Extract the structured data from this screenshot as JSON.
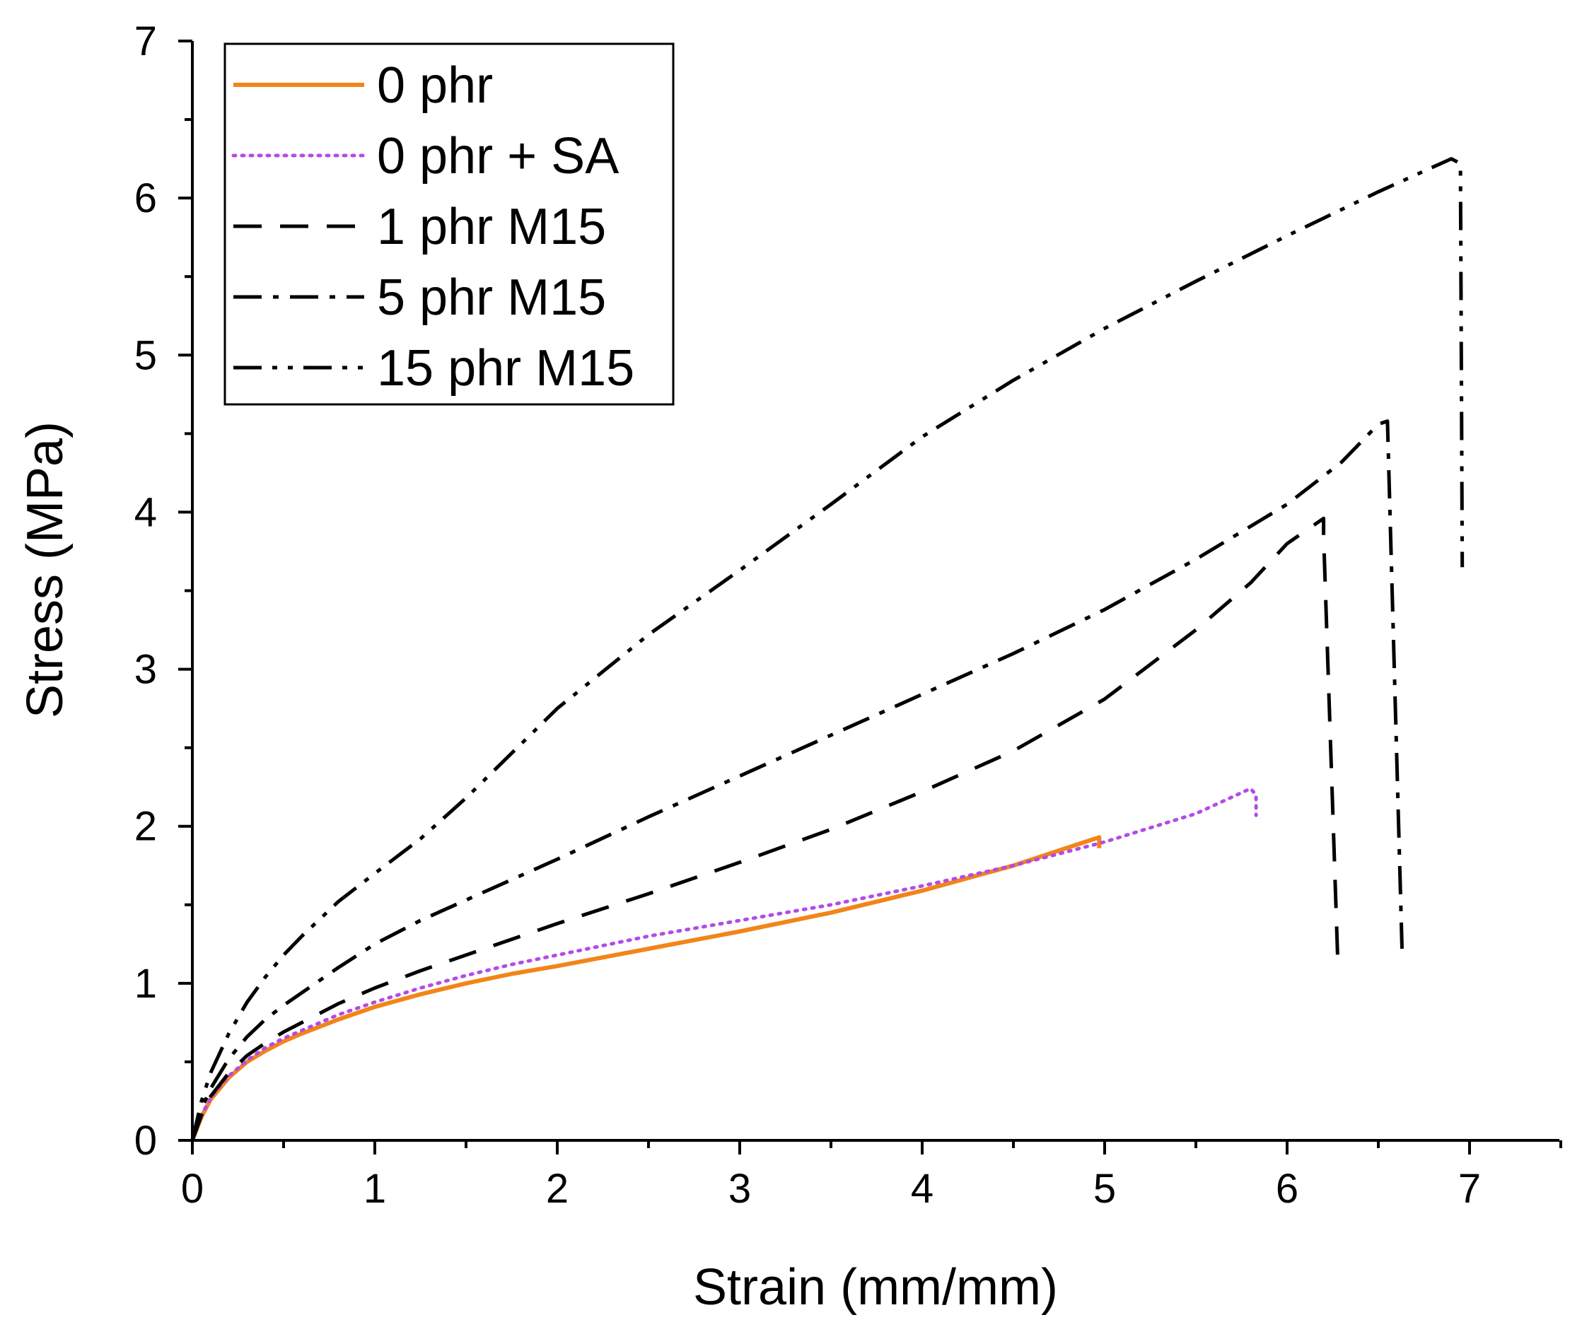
{
  "chart_data": {
    "type": "line",
    "title": "",
    "xlabel": "Strain (mm/mm)",
    "ylabel": "Stress (MPa)",
    "xlim": [
      0,
      7.5
    ],
    "ylim": [
      0,
      7
    ],
    "xticks": [
      0,
      1,
      2,
      3,
      4,
      5,
      6,
      7
    ],
    "yticks": [
      0,
      1,
      2,
      3,
      4,
      5,
      6,
      7
    ],
    "grid": false,
    "legend_position": "top-left",
    "series": [
      {
        "name": "0 phr",
        "color": "#f28518",
        "style": "solid",
        "x": [
          0,
          0.05,
          0.1,
          0.2,
          0.3,
          0.4,
          0.5,
          0.6,
          0.8,
          1.0,
          1.25,
          1.5,
          1.75,
          2.0,
          2.5,
          3.0,
          3.5,
          4.0,
          4.5,
          4.97,
          4.97
        ],
        "y": [
          0,
          0.15,
          0.26,
          0.4,
          0.5,
          0.57,
          0.63,
          0.68,
          0.77,
          0.85,
          0.93,
          1.0,
          1.06,
          1.11,
          1.22,
          1.33,
          1.45,
          1.59,
          1.75,
          1.93,
          1.86
        ]
      },
      {
        "name": "0 phr + SA",
        "color": "#b34be8",
        "style": "dotted",
        "x": [
          0,
          0.05,
          0.1,
          0.2,
          0.3,
          0.4,
          0.5,
          0.6,
          0.8,
          1.0,
          1.25,
          1.5,
          1.75,
          2.0,
          2.5,
          3.0,
          3.5,
          4.0,
          4.5,
          5.0,
          5.5,
          5.8,
          5.83,
          5.83
        ],
        "y": [
          0,
          0.16,
          0.27,
          0.41,
          0.51,
          0.59,
          0.65,
          0.7,
          0.8,
          0.88,
          0.97,
          1.05,
          1.12,
          1.18,
          1.3,
          1.4,
          1.5,
          1.62,
          1.75,
          1.9,
          2.08,
          2.24,
          2.2,
          2.07
        ]
      },
      {
        "name": "1 phr M15",
        "color": "#000000",
        "style": "dashed",
        "x": [
          0,
          0.05,
          0.1,
          0.2,
          0.3,
          0.4,
          0.5,
          0.6,
          0.8,
          1.0,
          1.25,
          1.5,
          2.0,
          2.5,
          3.0,
          3.5,
          4.0,
          4.5,
          5.0,
          5.5,
          5.8,
          6.0,
          6.2,
          6.2,
          6.28
        ],
        "y": [
          0,
          0.16,
          0.28,
          0.43,
          0.54,
          0.62,
          0.69,
          0.75,
          0.87,
          0.97,
          1.08,
          1.18,
          1.38,
          1.57,
          1.77,
          1.98,
          2.22,
          2.48,
          2.81,
          3.25,
          3.55,
          3.8,
          3.96,
          3.85,
          1.07
        ]
      },
      {
        "name": "5 phr M15",
        "color": "#000000",
        "style": "dashdot",
        "x": [
          0,
          0.05,
          0.1,
          0.2,
          0.3,
          0.4,
          0.5,
          0.6,
          0.8,
          1.0,
          1.25,
          1.5,
          2.0,
          2.5,
          3.0,
          3.5,
          4.0,
          4.5,
          5.0,
          5.5,
          6.0,
          6.3,
          6.5,
          6.55,
          6.63
        ],
        "y": [
          0,
          0.2,
          0.33,
          0.52,
          0.66,
          0.77,
          0.86,
          0.94,
          1.1,
          1.25,
          1.4,
          1.53,
          1.79,
          2.06,
          2.32,
          2.58,
          2.84,
          3.1,
          3.38,
          3.7,
          4.05,
          4.32,
          4.56,
          4.58,
          1.22
        ]
      },
      {
        "name": "15 phr M15",
        "color": "#000000",
        "style": "dashdotdot",
        "x": [
          0,
          0.05,
          0.1,
          0.2,
          0.3,
          0.4,
          0.5,
          0.6,
          0.8,
          1.0,
          1.25,
          1.5,
          2.0,
          2.5,
          3.0,
          3.5,
          4.0,
          4.5,
          5.0,
          5.5,
          6.0,
          6.5,
          6.9,
          6.95,
          6.96
        ],
        "y": [
          0,
          0.25,
          0.43,
          0.68,
          0.88,
          1.04,
          1.18,
          1.3,
          1.52,
          1.7,
          1.92,
          2.18,
          2.75,
          3.22,
          3.63,
          4.05,
          4.48,
          4.84,
          5.17,
          5.47,
          5.76,
          6.04,
          6.25,
          6.22,
          3.65
        ]
      }
    ]
  }
}
